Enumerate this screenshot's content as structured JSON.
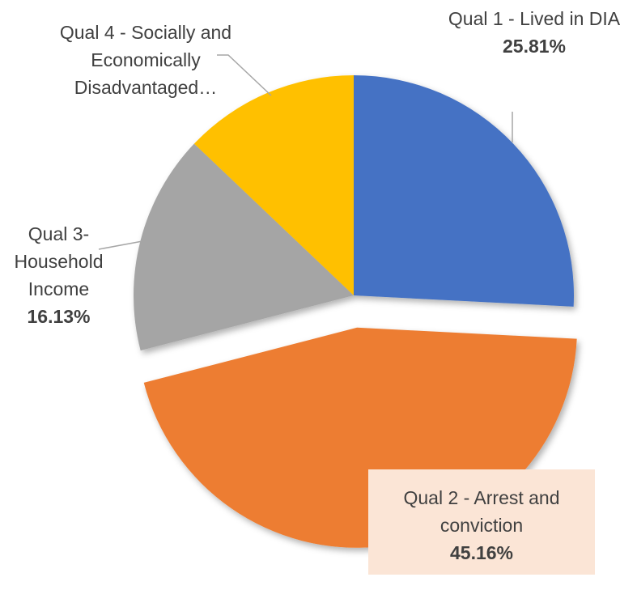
{
  "chart_data": {
    "type": "pie",
    "categories": [
      "Qual 1 - Lived in DIA",
      "Qual 2 - Arrest and conviction",
      "Qual 3- Household Income",
      "Qual 4 - Socially and Economically Disadvantaged…"
    ],
    "values": [
      25.81,
      45.16,
      16.13,
      12.9
    ],
    "value_labels": [
      "25.81%",
      "45.16%",
      "16.13%",
      null
    ],
    "colors": [
      "#4472c4",
      "#ed7d31",
      "#a5a5a5",
      "#ffc000"
    ],
    "explode": [
      false,
      true,
      false,
      false
    ]
  }
}
